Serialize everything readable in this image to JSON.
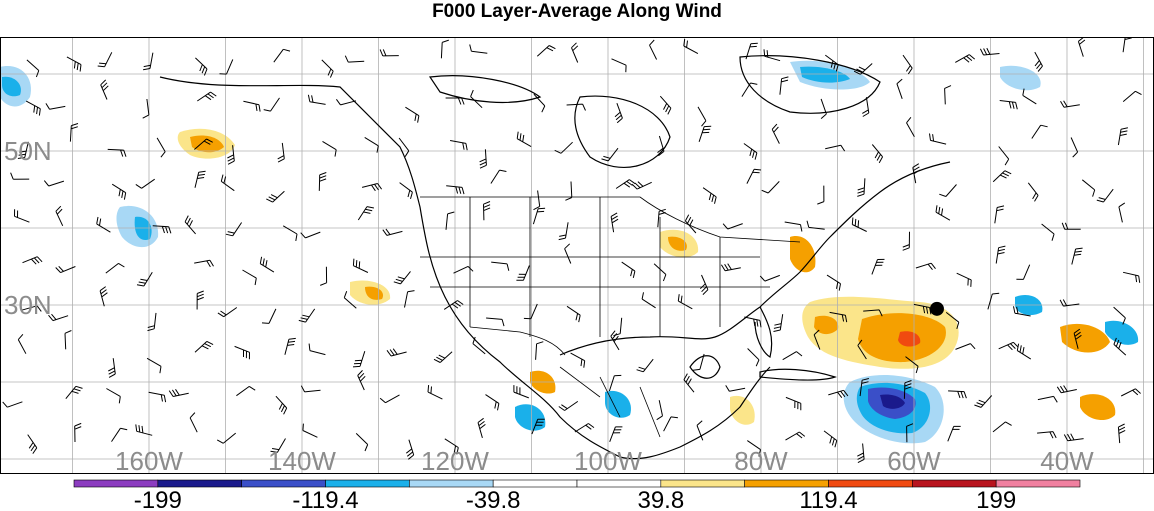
{
  "title": "F000 Layer-Average Along Wind",
  "lat_labels": [
    {
      "text": "50N",
      "lat": 50
    },
    {
      "text": "30N",
      "lat": 30
    }
  ],
  "lon_labels": [
    {
      "text": "160W",
      "lon": -160
    },
    {
      "text": "140W",
      "lon": -140
    },
    {
      "text": "120W",
      "lon": -120
    },
    {
      "text": "100W",
      "lon": -100
    },
    {
      "text": "80W",
      "lon": -80
    },
    {
      "text": "60W",
      "lon": -60
    },
    {
      "text": "40W",
      "lon": -40
    }
  ],
  "colorbar": {
    "colors": [
      "#8c3cc0",
      "#1a1a8c",
      "#3a4fc8",
      "#1ab0ea",
      "#a8d8f5",
      "#ffffff",
      "#ffffff",
      "#fbe58a",
      "#f5a000",
      "#f04a10",
      "#b8141e",
      "#f080a0"
    ],
    "labels": [
      "-199",
      "-119.4",
      "-39.8",
      "39.8",
      "119.4",
      "199"
    ]
  },
  "marker": {
    "name": "point",
    "lat": 29.5,
    "lon": -57
  }
}
